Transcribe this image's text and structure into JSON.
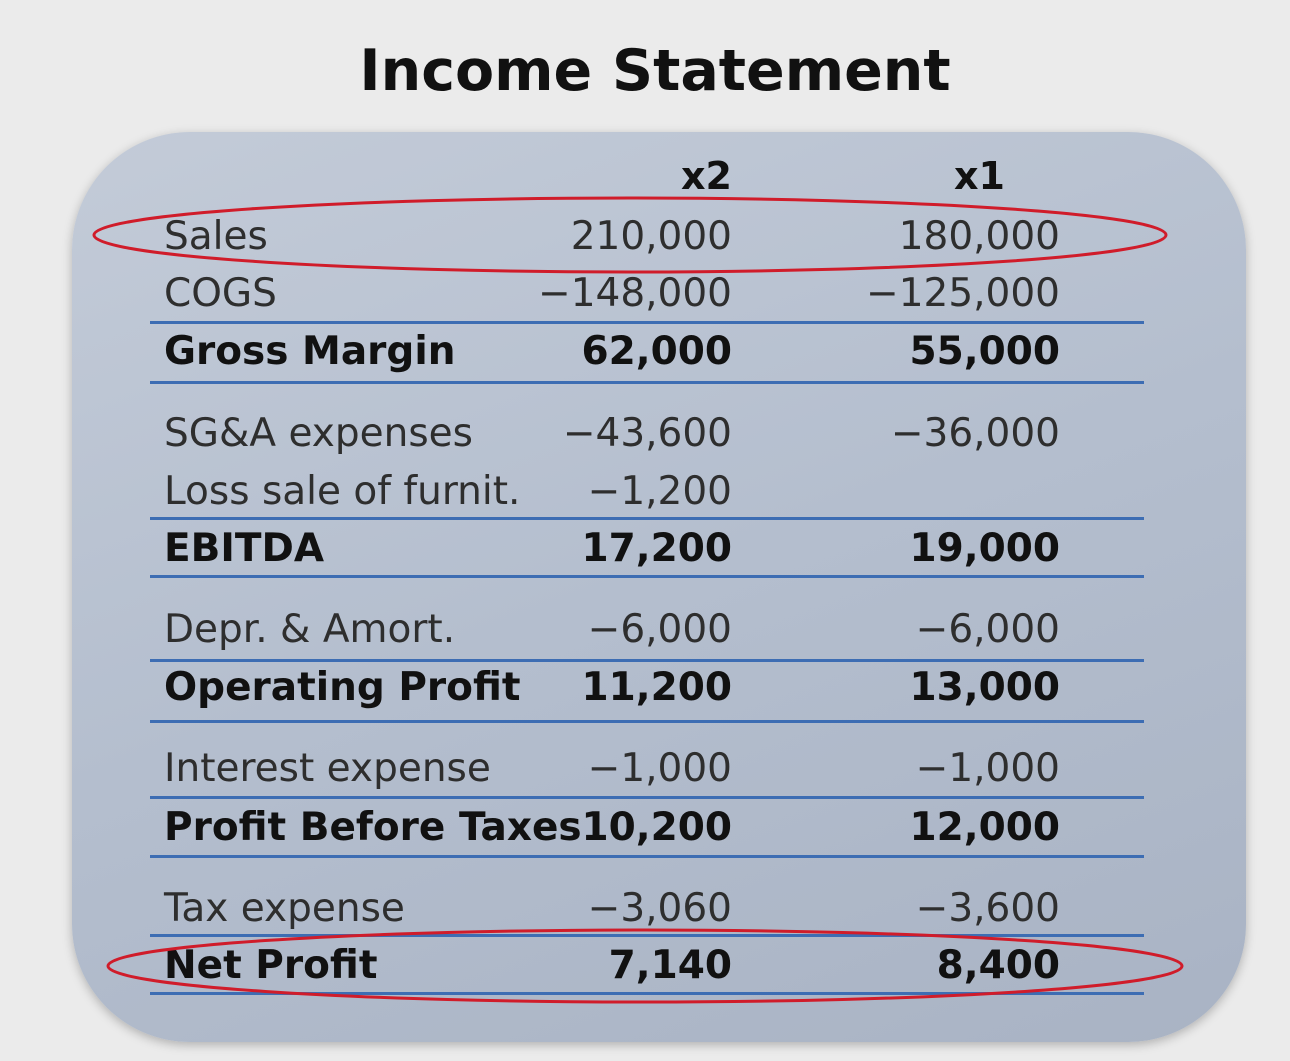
{
  "title": "Income Statement",
  "columns": {
    "col_a": "x2",
    "col_b": "x1"
  },
  "rows": [
    {
      "label": "Sales",
      "a": "210,000",
      "b": "180,000",
      "bold": false,
      "highlighted": true
    },
    {
      "label": "COGS",
      "a": "−148,000",
      "b": "−125,000",
      "bold": false
    },
    {
      "label": "Gross Margin",
      "a": "62,000",
      "b": "55,000",
      "bold": true
    },
    {
      "label": "SG&A expenses",
      "a": "−43,600",
      "b": "−36,000",
      "bold": false
    },
    {
      "label": "Loss sale of furnit.",
      "a": "−1,200",
      "b": "",
      "bold": false
    },
    {
      "label": "EBITDA",
      "a": "17,200",
      "b": "19,000",
      "bold": true
    },
    {
      "label": "Depr. & Amort.",
      "a": "−6,000",
      "b": "−6,000",
      "bold": false
    },
    {
      "label": "Operating Profit",
      "a": "11,200",
      "b": "13,000",
      "bold": true
    },
    {
      "label": "Interest expense",
      "a": "−1,000",
      "b": "−1,000",
      "bold": false
    },
    {
      "label": "Profit Before Taxes",
      "a": "10,200",
      "b": "12,000",
      "bold": true
    },
    {
      "label": "Tax expense",
      "a": "−3,060",
      "b": "−3,600",
      "bold": false
    },
    {
      "label": "Net Profit",
      "a": "7,140",
      "b": "8,400",
      "bold": true,
      "highlighted": true
    }
  ],
  "colors": {
    "highlight": "#d01c2a",
    "rule": "#3d6db3",
    "card": "#b4bece"
  }
}
